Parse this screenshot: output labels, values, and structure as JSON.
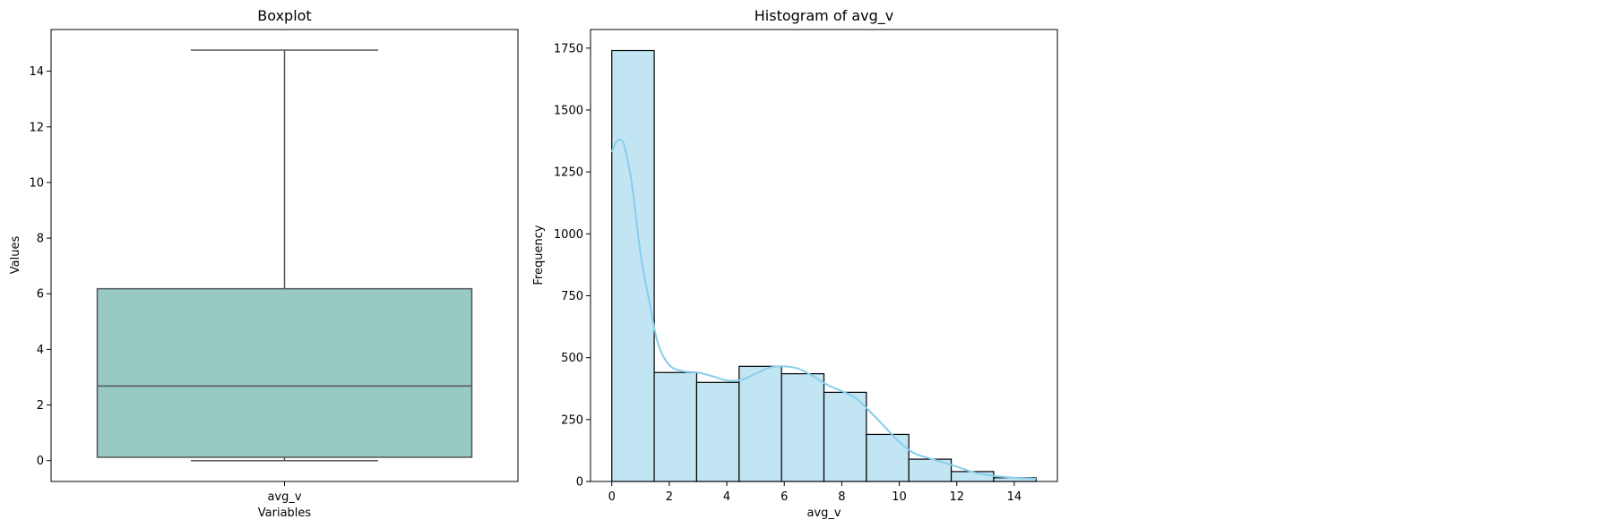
{
  "colors": {
    "box_fill": "#98c9c2",
    "box_line": "#555555",
    "hist_fill": "#c2e5f4",
    "hist_edge": "#000000",
    "kde": "#87ceeb"
  },
  "chart_data": [
    {
      "type": "box",
      "title": "Boxplot",
      "xlabel": "Variables",
      "ylabel": "Values",
      "categories": [
        "avg_v"
      ],
      "ylim": [
        -0.75,
        15.5
      ],
      "yticks": [
        0,
        2,
        4,
        6,
        8,
        10,
        12,
        14
      ],
      "box": {
        "whisker_low": 0.0,
        "q1": 0.12,
        "median": 2.68,
        "q3": 6.18,
        "whisker_high": 14.76
      },
      "grid": false
    },
    {
      "type": "histogram",
      "title": "Histogram of avg_v",
      "xlabel": "avg_v",
      "ylabel": "Frequency",
      "xlim": [
        -0.74,
        15.5
      ],
      "ylim": [
        0,
        1825
      ],
      "xticks": [
        0,
        2,
        4,
        6,
        8,
        10,
        12,
        14
      ],
      "yticks": [
        0,
        250,
        500,
        750,
        1000,
        1250,
        1500,
        1750
      ],
      "bin_edges": [
        0,
        1.476,
        2.952,
        4.428,
        5.904,
        7.38,
        8.856,
        10.332,
        11.808,
        13.284,
        14.76
      ],
      "counts": [
        1740,
        440,
        400,
        465,
        435,
        360,
        190,
        90,
        40,
        15
      ],
      "kde": {
        "x": [
          0,
          0.15,
          0.3,
          0.45,
          0.7,
          1.0,
          1.3,
          1.6,
          2.0,
          2.5,
          3.0,
          3.5,
          4.0,
          4.5,
          5.0,
          5.5,
          6.0,
          6.5,
          7.0,
          7.5,
          8.0,
          8.5,
          9.0,
          9.5,
          10.0,
          10.5,
          11.0,
          11.5,
          12.0,
          12.5,
          13.0,
          13.5,
          14.0,
          14.5,
          14.76
        ],
        "y": [
          1330,
          1370,
          1380,
          1350,
          1200,
          920,
          730,
          560,
          470,
          445,
          440,
          425,
          408,
          410,
          435,
          460,
          465,
          455,
          425,
          390,
          365,
          335,
          280,
          220,
          160,
          115,
          95,
          78,
          60,
          40,
          27,
          20,
          15,
          12,
          11
        ]
      },
      "grid": false
    }
  ]
}
